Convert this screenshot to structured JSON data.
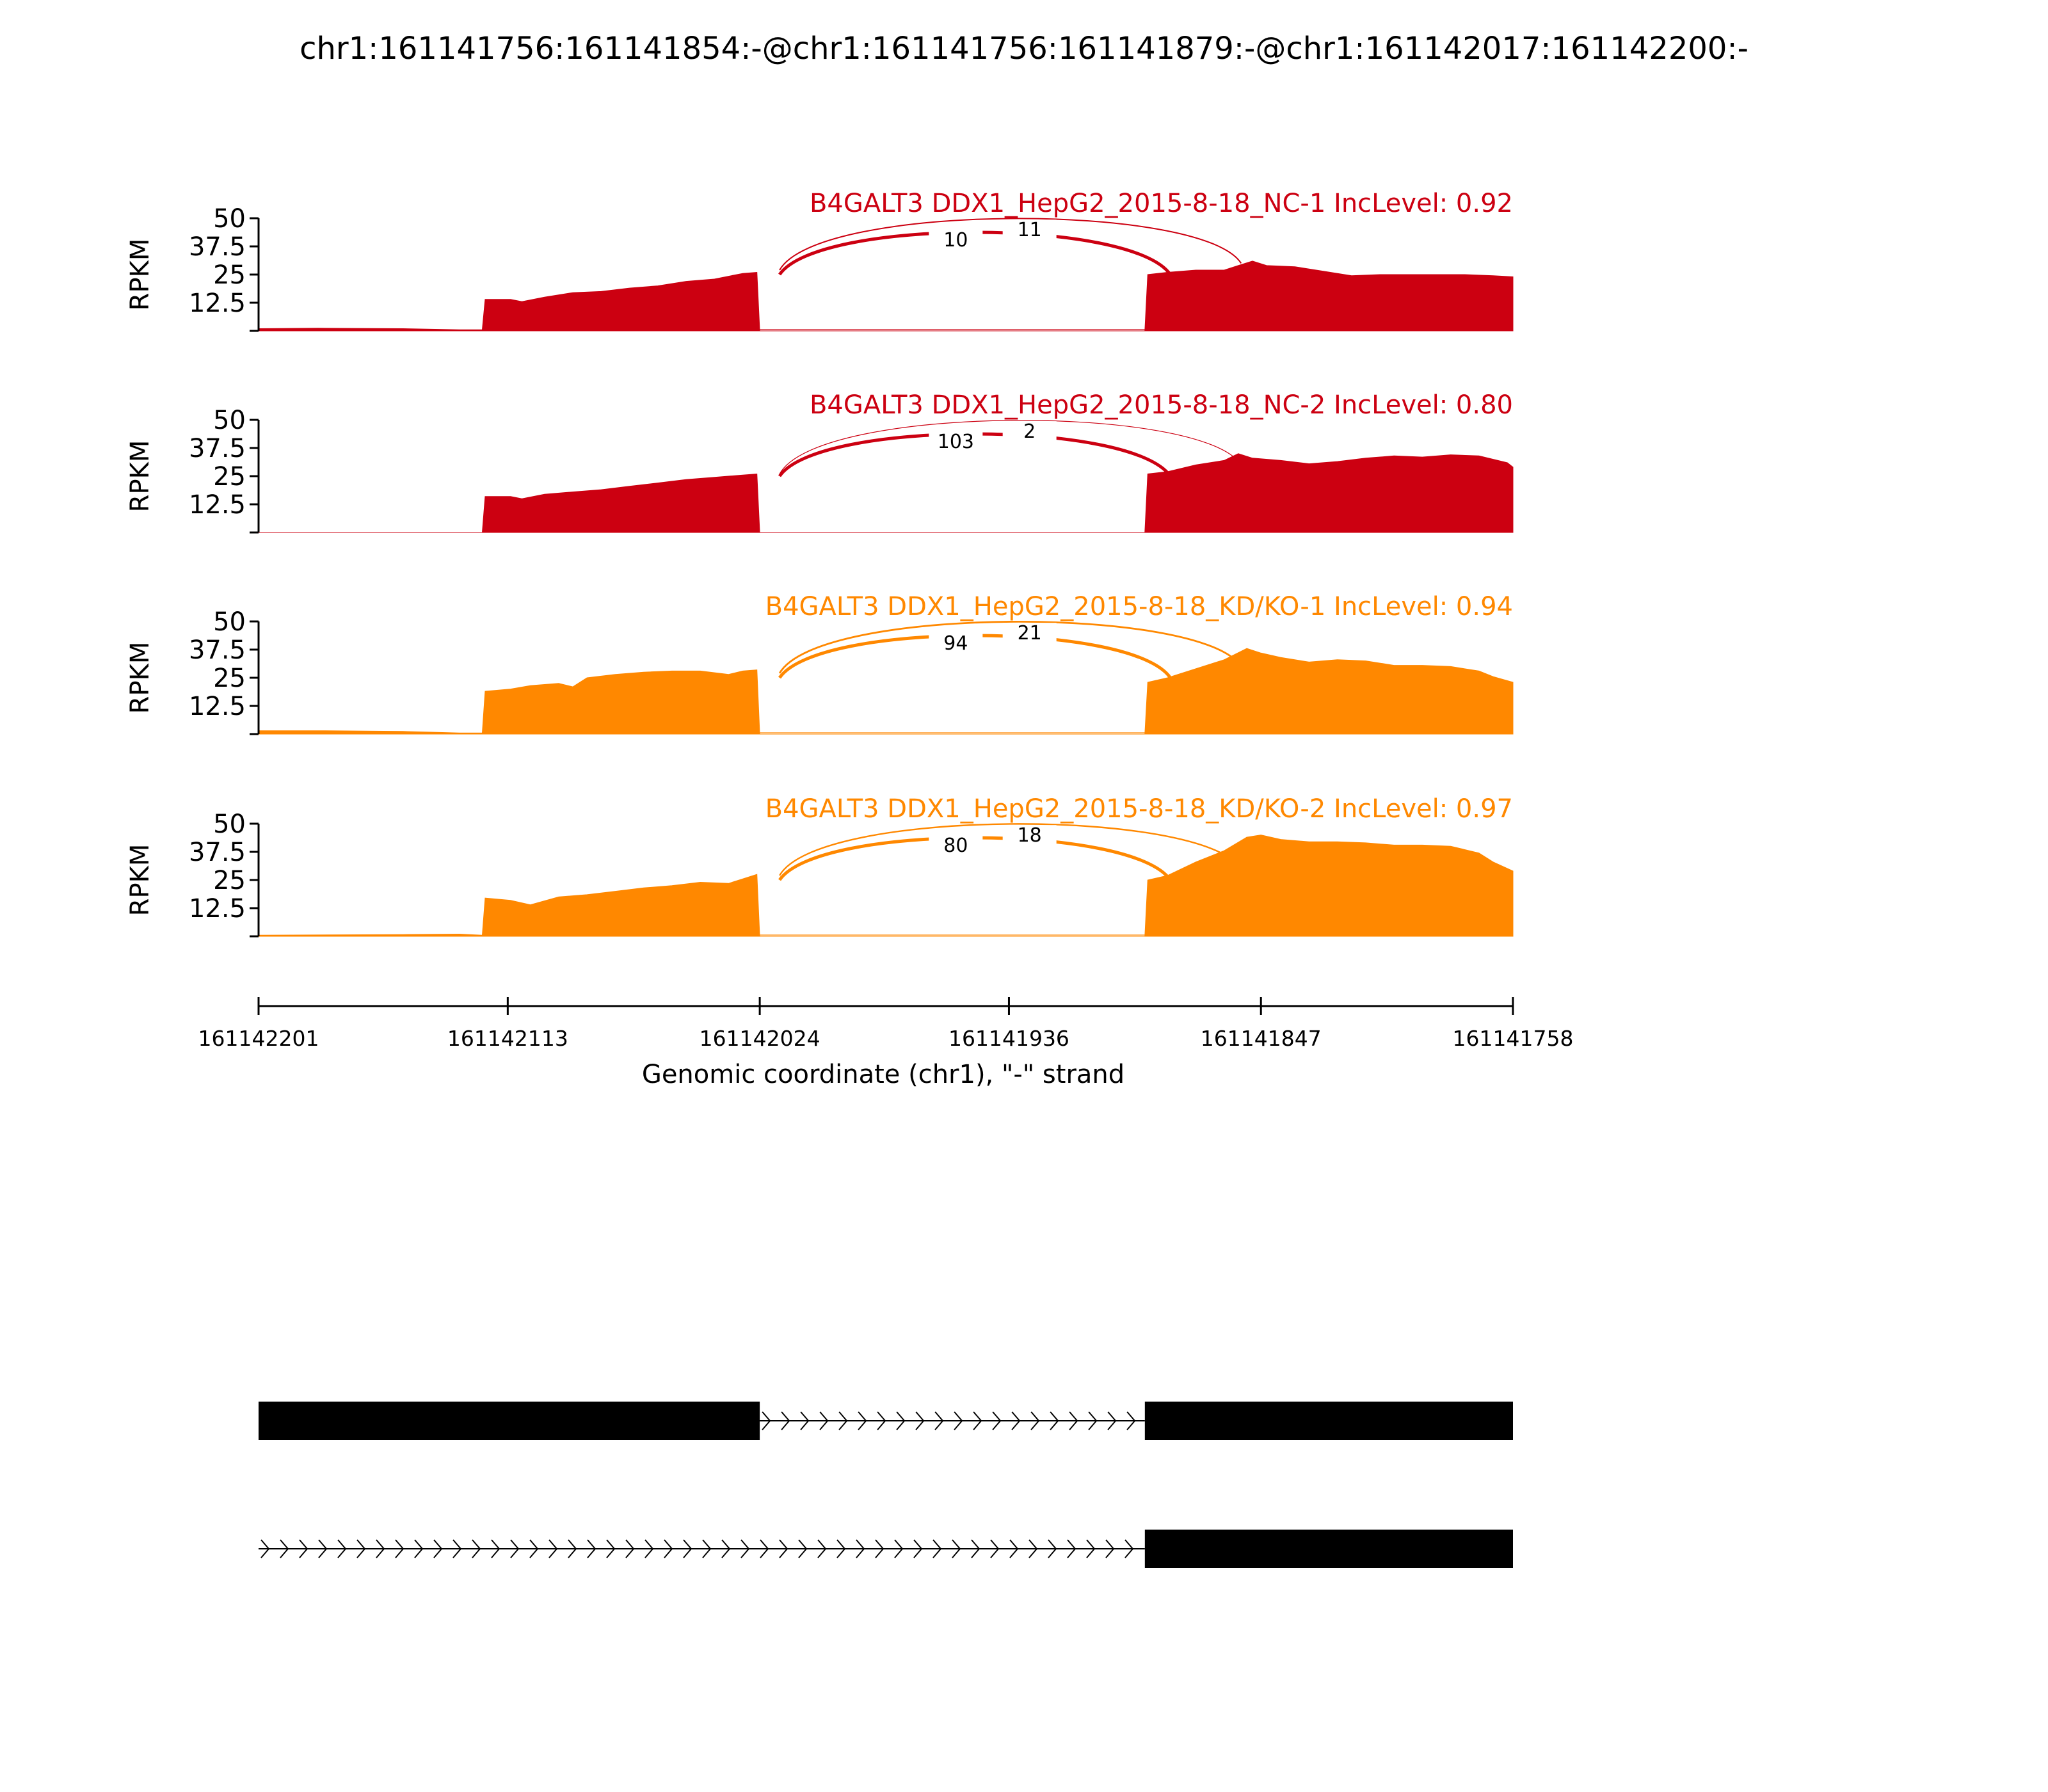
{
  "figure": {
    "title": "chr1:161141756:161141854:-@chr1:161141756:161141879:-@chr1:161142017:161142200:-",
    "xlabel": "Genomic coordinate (chr1), \"-\" strand"
  },
  "colors": {
    "nc": "#cc0011",
    "kd": "#ff8800",
    "text": "#000000"
  },
  "chart_data": {
    "type": "area",
    "x_range": [
      161142201,
      161141758
    ],
    "x_ticks": [
      161142201,
      161142113,
      161142024,
      161141936,
      161141847,
      161141758
    ],
    "x_tick_labels": [
      "161142201",
      "161142113",
      "161142024",
      "161141936",
      "161141847",
      "161141758"
    ],
    "ylabel": "RPKM",
    "ylim": [
      0,
      50
    ],
    "y_ticks": [
      12.5,
      25,
      37.5,
      50
    ],
    "y_tick_labels": [
      "12.5",
      "25",
      "37.5",
      "50"
    ],
    "series": [
      {
        "name": "B4GALT3 DDX1_HepG2_2015-8-18_NC-1 IncLevel: 0.92",
        "color": "#cc0011",
        "coverage": [
          [
            161142201,
            1
          ],
          [
            161142180,
            1.2
          ],
          [
            161142150,
            1
          ],
          [
            161142130,
            0.5
          ],
          [
            161142122,
            0.5
          ],
          [
            161142121,
            14
          ],
          [
            161142112,
            14
          ],
          [
            161142108,
            13
          ],
          [
            161142100,
            15
          ],
          [
            161142090,
            17
          ],
          [
            161142080,
            17.5
          ],
          [
            161142070,
            19
          ],
          [
            161142060,
            20
          ],
          [
            161142050,
            22
          ],
          [
            161142040,
            23
          ],
          [
            161142030,
            25.5
          ],
          [
            161142025,
            26
          ],
          [
            161142024,
            0
          ],
          [
            161141888,
            0
          ],
          [
            161141887,
            25
          ],
          [
            161141880,
            26
          ],
          [
            161141870,
            27
          ],
          [
            161141860,
            27
          ],
          [
            161141855,
            29
          ],
          [
            161141850,
            31
          ],
          [
            161141845,
            29
          ],
          [
            161141835,
            28.5
          ],
          [
            161141825,
            26.5
          ],
          [
            161141815,
            24.5
          ],
          [
            161141805,
            25
          ],
          [
            161141795,
            25
          ],
          [
            161141785,
            25
          ],
          [
            161141775,
            25
          ],
          [
            161141765,
            24.5
          ],
          [
            161141758,
            24
          ]
        ],
        "junctions": [
          {
            "from": 161142017,
            "to": 161141879,
            "count": "10",
            "weight": 2.5
          },
          {
            "from": 161142017,
            "to": 161141854,
            "count": "11",
            "weight": 1
          },
          {
            "from": 161142024,
            "to": 161141888,
            "count": "",
            "weight": 0.6
          }
        ]
      },
      {
        "name": "B4GALT3 DDX1_HepG2_2015-8-18_NC-2 IncLevel: 0.80",
        "color": "#cc0011",
        "coverage": [
          [
            161142201,
            0
          ],
          [
            161142122,
            0
          ],
          [
            161142121,
            16
          ],
          [
            161142112,
            16
          ],
          [
            161142108,
            15
          ],
          [
            161142100,
            17
          ],
          [
            161142090,
            18
          ],
          [
            161142080,
            19
          ],
          [
            161142070,
            20.5
          ],
          [
            161142060,
            22
          ],
          [
            161142050,
            23.5
          ],
          [
            161142040,
            24.5
          ],
          [
            161142030,
            25.5
          ],
          [
            161142025,
            26
          ],
          [
            161142024,
            0
          ],
          [
            161141888,
            0
          ],
          [
            161141887,
            26
          ],
          [
            161141880,
            27
          ],
          [
            161141870,
            30
          ],
          [
            161141860,
            32
          ],
          [
            161141855,
            35
          ],
          [
            161141850,
            33
          ],
          [
            161141840,
            32
          ],
          [
            161141830,
            30.5
          ],
          [
            161141820,
            31.5
          ],
          [
            161141810,
            33
          ],
          [
            161141800,
            34
          ],
          [
            161141790,
            33.5
          ],
          [
            161141780,
            34.5
          ],
          [
            161141770,
            34
          ],
          [
            161141760,
            31
          ],
          [
            161141758,
            29
          ]
        ],
        "junctions": [
          {
            "from": 161142017,
            "to": 161141879,
            "count": "103",
            "weight": 2.5
          },
          {
            "from": 161142017,
            "to": 161141854,
            "count": "2",
            "weight": 0.6
          }
        ]
      },
      {
        "name": "B4GALT3 DDX1_HepG2_2015-8-18_KD/KO-1 IncLevel: 0.94",
        "color": "#ff8800",
        "coverage": [
          [
            161142201,
            1.5
          ],
          [
            161142180,
            1.5
          ],
          [
            161142150,
            1.2
          ],
          [
            161142130,
            0.5
          ],
          [
            161142122,
            0.5
          ],
          [
            161142121,
            19
          ],
          [
            161142112,
            20
          ],
          [
            161142105,
            21.5
          ],
          [
            161142095,
            22.5
          ],
          [
            161142090,
            21
          ],
          [
            161142085,
            25
          ],
          [
            161142075,
            26.5
          ],
          [
            161142065,
            27.5
          ],
          [
            161142055,
            28
          ],
          [
            161142045,
            28
          ],
          [
            161142035,
            26.5
          ],
          [
            161142030,
            28
          ],
          [
            161142025,
            28.5
          ],
          [
            161142024,
            0
          ],
          [
            161141888,
            0
          ],
          [
            161141887,
            23
          ],
          [
            161141880,
            25
          ],
          [
            161141870,
            29
          ],
          [
            161141860,
            33
          ],
          [
            161141852,
            38
          ],
          [
            161141847,
            36
          ],
          [
            161141840,
            34
          ],
          [
            161141830,
            32
          ],
          [
            161141820,
            33
          ],
          [
            161141810,
            32.5
          ],
          [
            161141800,
            30.5
          ],
          [
            161141790,
            30.5
          ],
          [
            161141780,
            30
          ],
          [
            161141770,
            28
          ],
          [
            161141765,
            25.5
          ],
          [
            161141758,
            23
          ]
        ],
        "junctions": [
          {
            "from": 161142017,
            "to": 161141879,
            "count": "94",
            "weight": 2.5
          },
          {
            "from": 161142017,
            "to": 161141854,
            "count": "21",
            "weight": 1.4
          },
          {
            "from": 161142024,
            "to": 161141888,
            "count": "",
            "weight": 0.6
          }
        ]
      },
      {
        "name": "B4GALT3 DDX1_HepG2_2015-8-18_KD/KO-2 IncLevel: 0.97",
        "color": "#ff8800",
        "coverage": [
          [
            161142201,
            0.5
          ],
          [
            161142150,
            0.8
          ],
          [
            161142130,
            1
          ],
          [
            161142122,
            0.5
          ],
          [
            161142121,
            17
          ],
          [
            161142112,
            16
          ],
          [
            161142105,
            14
          ],
          [
            161142095,
            17.5
          ],
          [
            161142085,
            18.5
          ],
          [
            161142075,
            20
          ],
          [
            161142065,
            21.5
          ],
          [
            161142055,
            22.5
          ],
          [
            161142045,
            24
          ],
          [
            161142035,
            23.5
          ],
          [
            161142030,
            25.5
          ],
          [
            161142025,
            27.5
          ],
          [
            161142024,
            0
          ],
          [
            161141888,
            0
          ],
          [
            161141887,
            25
          ],
          [
            161141880,
            27
          ],
          [
            161141870,
            33
          ],
          [
            161141860,
            38
          ],
          [
            161141852,
            44
          ],
          [
            161141847,
            45
          ],
          [
            161141840,
            43
          ],
          [
            161141830,
            42
          ],
          [
            161141820,
            42
          ],
          [
            161141810,
            41.5
          ],
          [
            161141800,
            40.5
          ],
          [
            161141790,
            40.5
          ],
          [
            161141780,
            40
          ],
          [
            161141770,
            37
          ],
          [
            161141765,
            33
          ],
          [
            161141758,
            29
          ]
        ],
        "junctions": [
          {
            "from": 161142017,
            "to": 161141879,
            "count": "80",
            "weight": 2.5
          },
          {
            "from": 161142017,
            "to": 161141854,
            "count": "18",
            "weight": 1.2
          },
          {
            "from": 161142024,
            "to": 161141888,
            "count": "",
            "weight": 0.6
          }
        ]
      }
    ],
    "transcripts": [
      {
        "exons": [
          [
            161142201,
            161142024
          ],
          [
            161141888,
            161141758
          ]
        ],
        "intron": [
          161142024,
          161141888
        ]
      },
      {
        "exons": [
          [
            161141888,
            161141758
          ]
        ],
        "intron": [
          161142201,
          161141888
        ]
      }
    ]
  }
}
